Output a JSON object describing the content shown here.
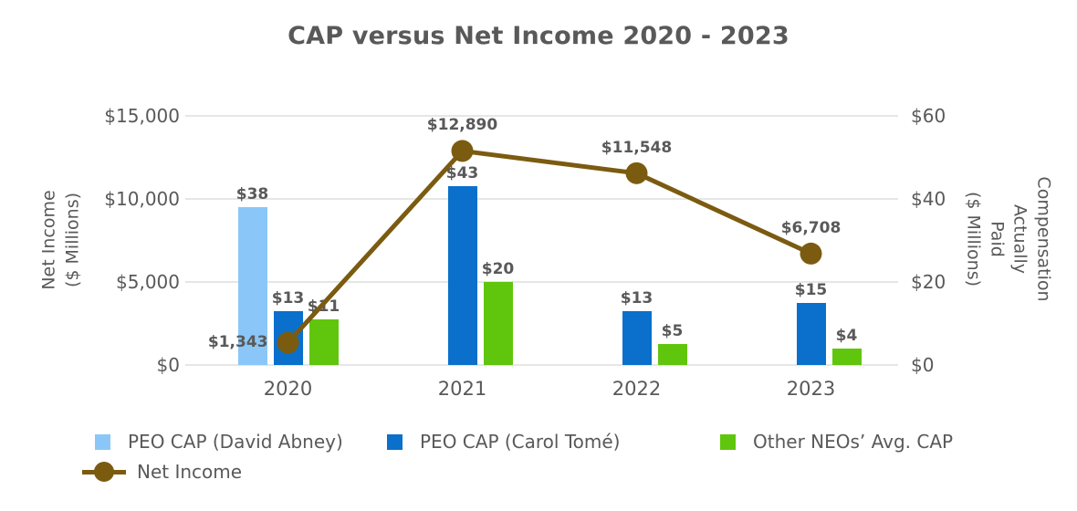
{
  "chart_data": {
    "type": "combo-bar-line",
    "title": "CAP versus Net Income 2020 - 2023",
    "categories": [
      "2020",
      "2021",
      "2022",
      "2023"
    ],
    "bar_series": [
      {
        "name": "PEO CAP (David Abney)",
        "color": "#8AC7F8",
        "values": [
          38,
          null,
          null,
          null
        ],
        "labels": [
          "$38",
          "",
          "",
          ""
        ]
      },
      {
        "name": "PEO CAP (Carol Tomé)",
        "color": "#0A70CB",
        "values": [
          13,
          43,
          13,
          15
        ],
        "labels": [
          "$13",
          "$43",
          "$13",
          "$15"
        ]
      },
      {
        "name": "Other NEOs’ Avg. CAP",
        "color": "#60C60D",
        "values": [
          11,
          20,
          5,
          4
        ],
        "labels": [
          "$11",
          "$20",
          "$5",
          "$4"
        ]
      }
    ],
    "line_series": {
      "name": "Net Income",
      "color": "#7B5B10",
      "values": [
        1343,
        12890,
        11548,
        6708
      ],
      "labels": [
        "$1,343",
        "$12,890",
        "$11,548",
        "$6,708"
      ]
    },
    "left_axis": {
      "title": "Net Income\n($ Millions)",
      "ticks": [
        "$0",
        "$5,000",
        "$10,000",
        "$15,000"
      ],
      "min": 0,
      "max": 15000
    },
    "right_axis": {
      "title": "Compensation Actually\nPaid\n($ Millions)",
      "ticks": [
        "$0",
        "$20",
        "$40",
        "$60"
      ],
      "min": 0,
      "max": 60
    },
    "legend": [
      {
        "label": "PEO CAP (David Abney)",
        "color": "#8AC7F8",
        "symbol": "square"
      },
      {
        "label": "PEO CAP (Carol Tomé)",
        "color": "#0A70CB",
        "symbol": "square"
      },
      {
        "label": "Other NEOs’ Avg. CAP",
        "color": "#60C60D",
        "symbol": "square"
      },
      {
        "label": "Net Income",
        "color": "#7B5B10",
        "symbol": "line-marker"
      }
    ],
    "grid": "horizontal",
    "legend_position": "bottom",
    "text_color": "#595959"
  }
}
